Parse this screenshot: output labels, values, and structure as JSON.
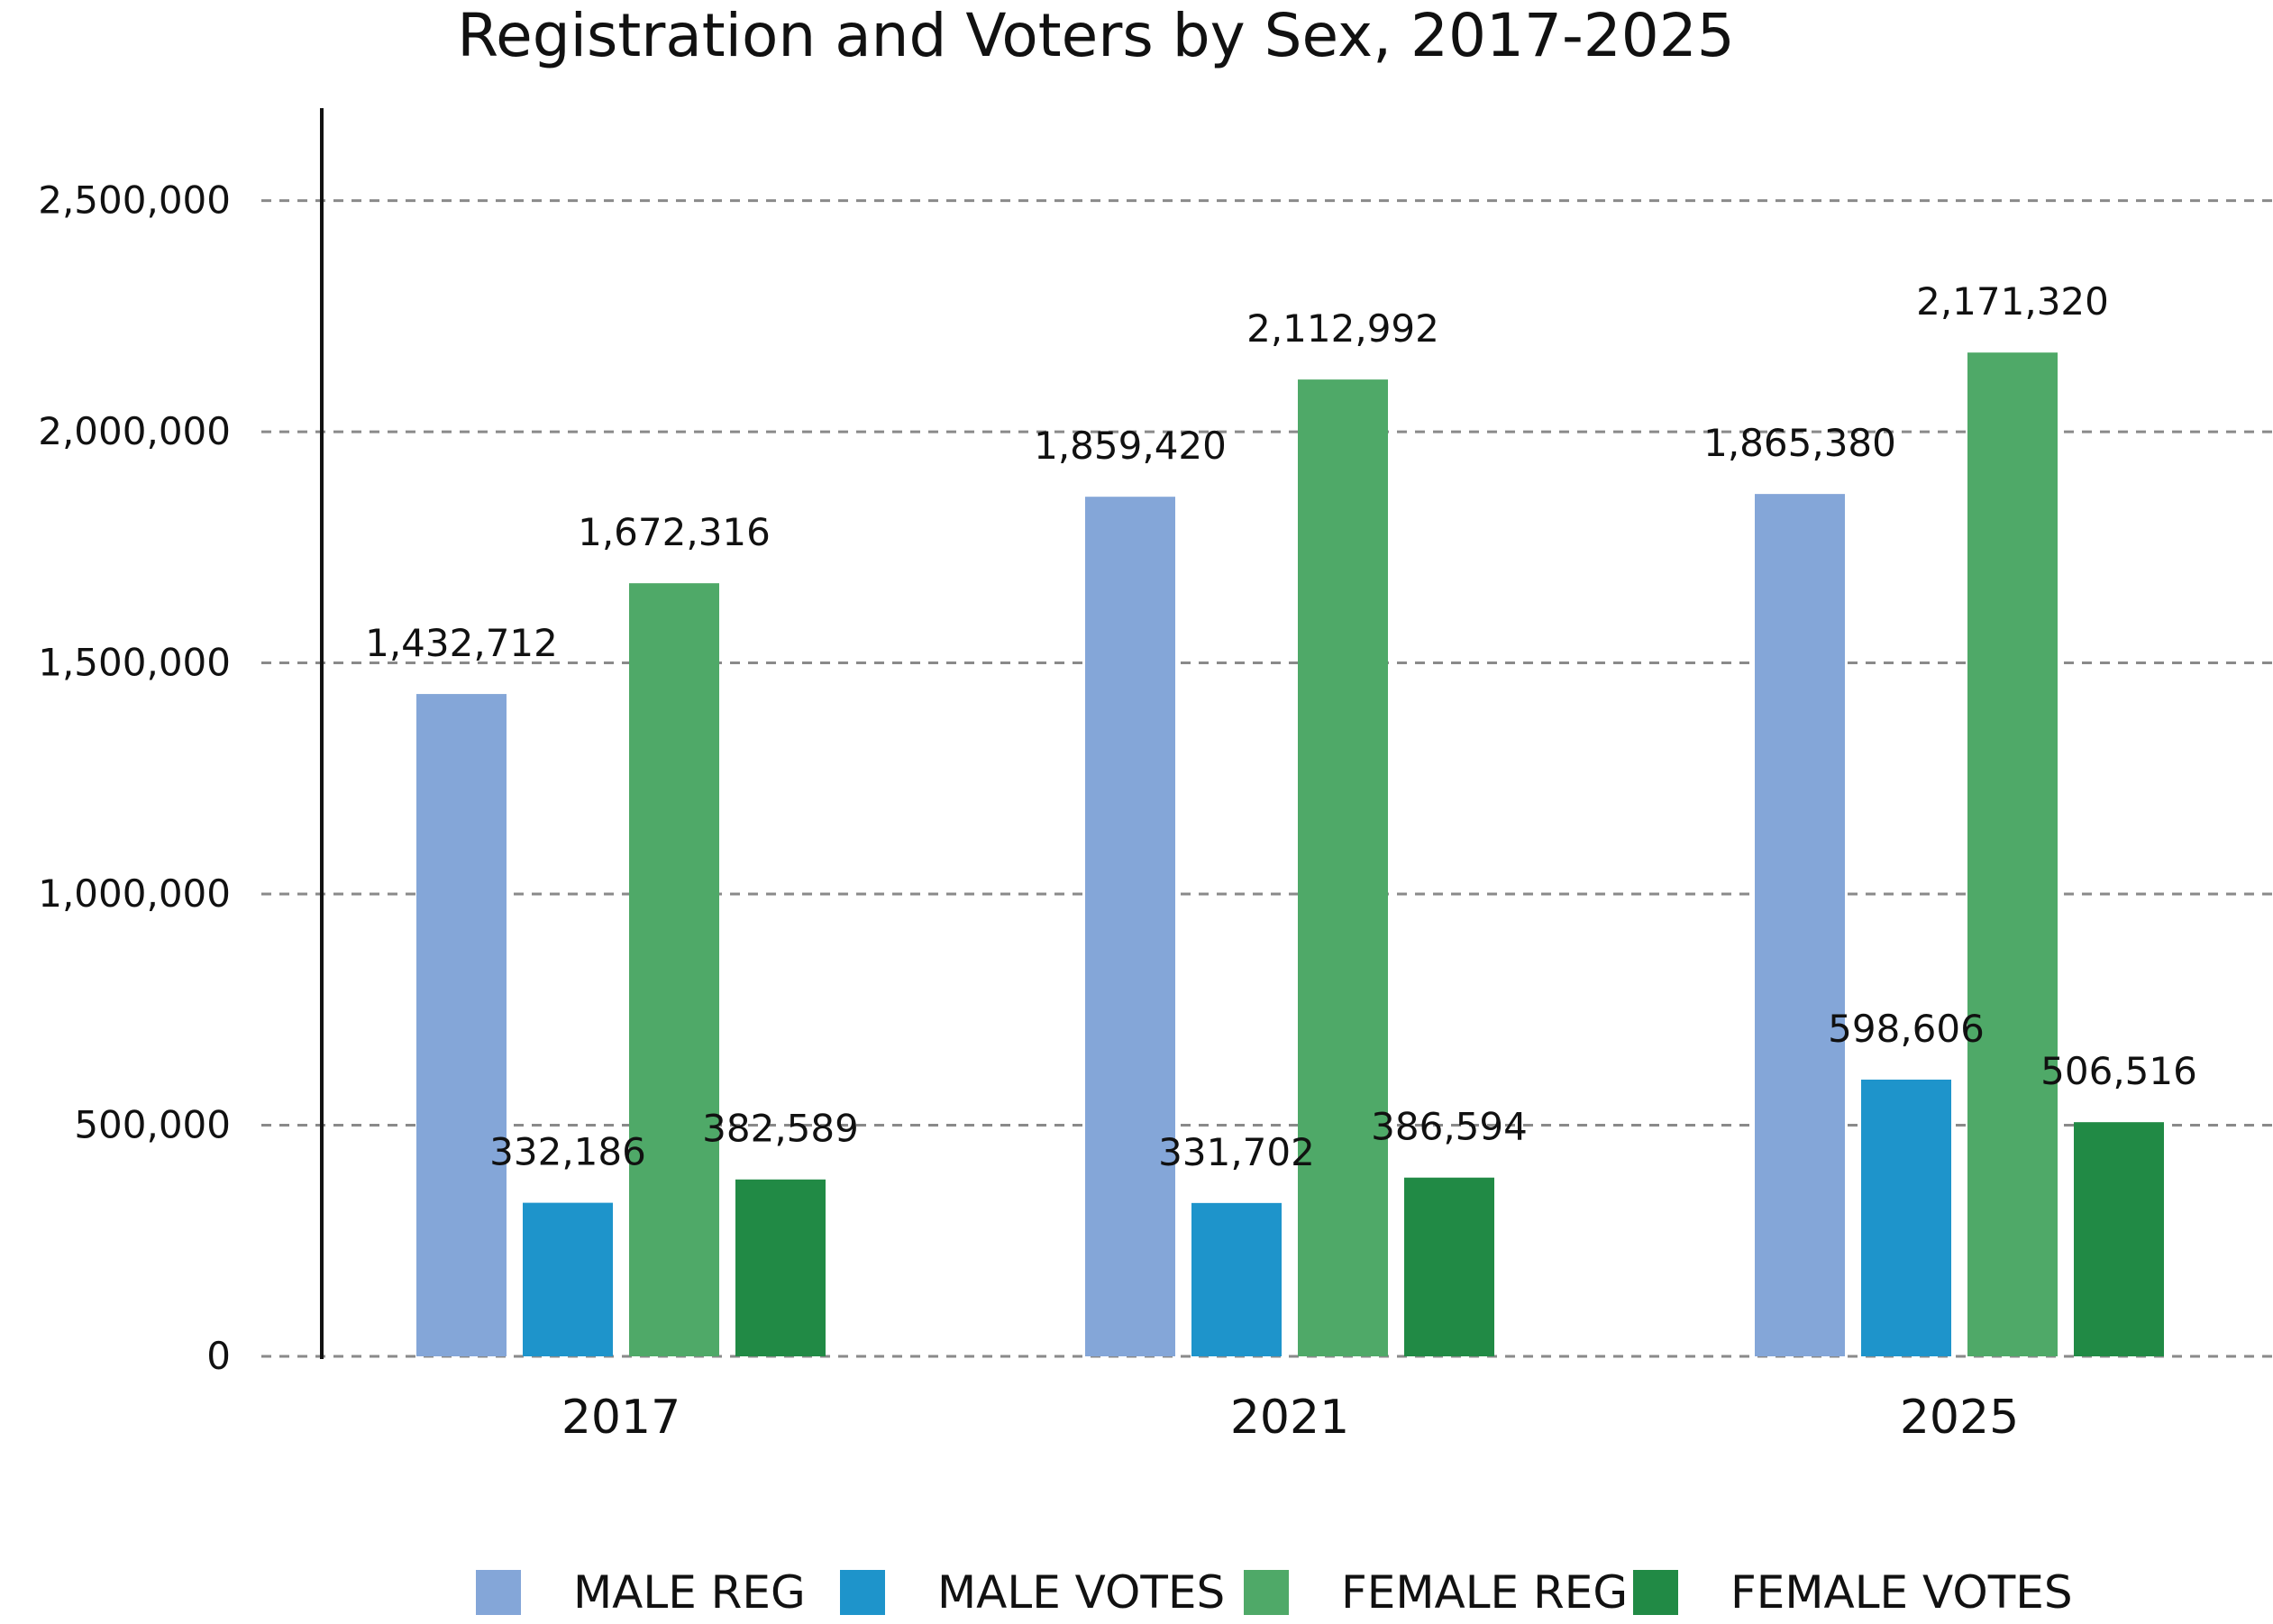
{
  "chart_data": {
    "type": "bar",
    "title": "Registration and Voters by Sex, 2017-2025",
    "xlabel": "",
    "ylabel": "",
    "categories": [
      "2017",
      "2021",
      "2025"
    ],
    "ylim": [
      0,
      2700000
    ],
    "yticks": [
      0,
      500000,
      1000000,
      1500000,
      2000000,
      2500000
    ],
    "ytick_labels": [
      "0",
      "500,000",
      "1,000,000",
      "1,500,000",
      "2,000,000",
      "2,500,000"
    ],
    "grid": true,
    "legend_position": "bottom",
    "series": [
      {
        "name": "MALE REG",
        "color": "#84A6D8",
        "values": [
          1432712,
          1859420,
          1865380
        ],
        "labels": [
          "1,432,712",
          "1,859,420",
          "1,865,380"
        ]
      },
      {
        "name": "MALE VOTES",
        "color": "#1E94CB",
        "values": [
          332186,
          331702,
          598606
        ],
        "labels": [
          "332,186",
          "331,702",
          "598,606"
        ]
      },
      {
        "name": "FEMALE REG",
        "color": "#4FA968",
        "values": [
          1672316,
          2112992,
          2171320
        ],
        "labels": [
          "1,672,316",
          "2,112,992",
          "2,171,320"
        ]
      },
      {
        "name": "FEMALE VOTES",
        "color": "#218A45",
        "values": [
          382589,
          386594,
          506516
        ],
        "labels": [
          "382,589",
          "386,594",
          "506,516"
        ]
      }
    ]
  }
}
